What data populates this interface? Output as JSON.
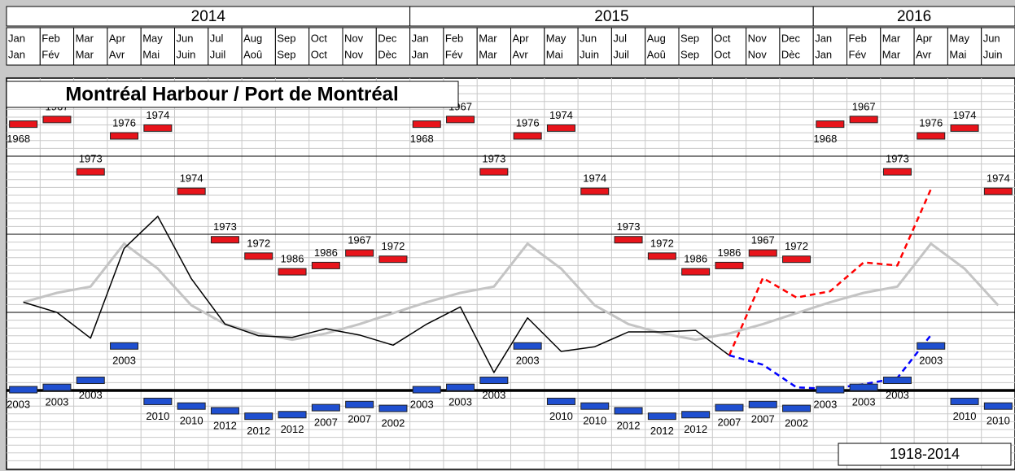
{
  "chart_data": {
    "type": "line",
    "title": "Montréal Harbour / Port de Montréal",
    "period_label": "1918-2014",
    "years": [
      "2014",
      "2015",
      "2016"
    ],
    "months": [
      "Jan",
      "Feb",
      "Mar",
      "Apr",
      "May",
      "Jun",
      "Jul",
      "Aug",
      "Sep",
      "Oct",
      "Nov",
      "Dec"
    ],
    "months_fr": [
      "Jan",
      "Fév",
      "Mar",
      "Avr",
      "Mai",
      "Juin",
      "Juil",
      "Aoû",
      "Sep",
      "Oct",
      "Nov",
      "Dèc"
    ],
    "month_count": 30,
    "ylim": [
      -1,
      4
    ],
    "yticks": [
      0,
      1,
      2,
      3
    ],
    "minor_yticks": [
      -0.9,
      -0.8,
      -0.7,
      -0.6,
      -0.5,
      -0.4,
      -0.3,
      -0.2,
      -0.1,
      0.1,
      0.2,
      0.3,
      0.4,
      0.5,
      0.6,
      0.7,
      0.8,
      0.9,
      1.1,
      1.2,
      1.3,
      1.4,
      1.5,
      1.6,
      1.7,
      1.8,
      1.9,
      2.1,
      2.2,
      2.3,
      2.4,
      2.5,
      2.6,
      2.7,
      2.8,
      2.9,
      3.1,
      3.2,
      3.3,
      3.4,
      3.5,
      3.6,
      3.7,
      3.8,
      3.9
    ],
    "grid": true,
    "record_high": {
      "color": "#e8141b",
      "values": [
        3.41,
        3.47,
        2.8,
        3.26,
        3.36,
        2.55,
        1.93,
        1.72,
        1.52,
        1.6,
        1.76,
        1.68
      ],
      "years": [
        "1968",
        "1967",
        "1973",
        "1976",
        "1974",
        "1974",
        "1973",
        "1972",
        "1986",
        "1986",
        "1967",
        "1972"
      ]
    },
    "record_low": {
      "color": "#1f4fd0",
      "values": [
        0.01,
        0.04,
        0.13,
        0.57,
        -0.14,
        -0.2,
        -0.26,
        -0.33,
        -0.31,
        -0.22,
        -0.18,
        -0.23
      ],
      "years": [
        "2003",
        "2003",
        "2003",
        "2003",
        "2010",
        "2010",
        "2012",
        "2012",
        "2012",
        "2007",
        "2007",
        "2002"
      ]
    },
    "monthly_mean": {
      "color": "#c4c4c4",
      "values": [
        1.13,
        1.25,
        1.33,
        1.88,
        1.56,
        1.09,
        0.85,
        0.73,
        0.65,
        0.73,
        0.85,
        0.99
      ]
    },
    "series": [
      {
        "color": "#000000",
        "dashed": false,
        "values": [
          1.13,
          1.0,
          0.67,
          1.82,
          2.23,
          1.43,
          0.85,
          0.7,
          0.68,
          0.79,
          0.71,
          0.58,
          0.85,
          1.07,
          0.23,
          0.93,
          0.5,
          0.56,
          0.75,
          0.75,
          0.77,
          0.45,
          null,
          null,
          null,
          null,
          null,
          null,
          null,
          null
        ]
      },
      {
        "color": "#ff0000",
        "dashed": true,
        "values": [
          null,
          null,
          null,
          null,
          null,
          null,
          null,
          null,
          null,
          null,
          null,
          null,
          null,
          null,
          null,
          null,
          null,
          null,
          null,
          null,
          null,
          0.45,
          1.44,
          1.19,
          1.27,
          1.64,
          1.6,
          2.58,
          null,
          null
        ]
      },
      {
        "color": "#0000ff",
        "dashed": true,
        "values": [
          null,
          null,
          null,
          null,
          null,
          null,
          null,
          null,
          null,
          null,
          null,
          null,
          null,
          null,
          null,
          null,
          null,
          null,
          null,
          null,
          null,
          0.45,
          0.33,
          0.04,
          0.02,
          0.08,
          0.16,
          0.71,
          null,
          null
        ]
      }
    ]
  }
}
